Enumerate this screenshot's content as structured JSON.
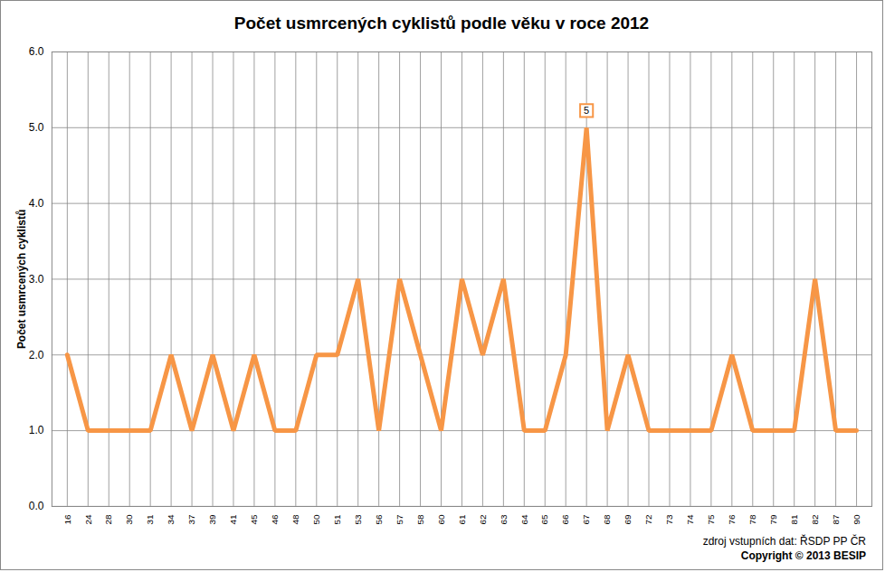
{
  "chart_data": {
    "type": "line",
    "title": "Počet usmrcených cyklistů podle věku v roce 2012",
    "y_label": "Počet usmrcených cyklistů",
    "categories": [
      "16",
      "24",
      "28",
      "30",
      "31",
      "34",
      "37",
      "39",
      "41",
      "45",
      "46",
      "48",
      "50",
      "51",
      "53",
      "56",
      "57",
      "58",
      "60",
      "61",
      "62",
      "63",
      "64",
      "65",
      "66",
      "67",
      "68",
      "69",
      "72",
      "73",
      "74",
      "75",
      "76",
      "78",
      "79",
      "81",
      "82",
      "87",
      "90"
    ],
    "values": [
      2,
      1,
      1,
      1,
      1,
      2,
      1,
      2,
      1,
      2,
      1,
      1,
      2,
      2,
      3,
      1,
      3,
      2,
      1,
      3,
      2,
      3,
      1,
      1,
      2,
      5,
      1,
      2,
      1,
      1,
      1,
      1,
      2,
      1,
      1,
      1,
      3,
      1,
      1
    ],
    "color": "#f79646",
    "ylim": [
      0,
      6
    ],
    "yticks": [
      0,
      1,
      2,
      3,
      4,
      5,
      6
    ],
    "grid": true,
    "annotations": [
      {
        "category": "67",
        "value": 5
      }
    ],
    "footer": [
      "zdroj vstupních dat: ŘSDP PP ČR",
      "Copyright © 2013 BESIP"
    ]
  }
}
